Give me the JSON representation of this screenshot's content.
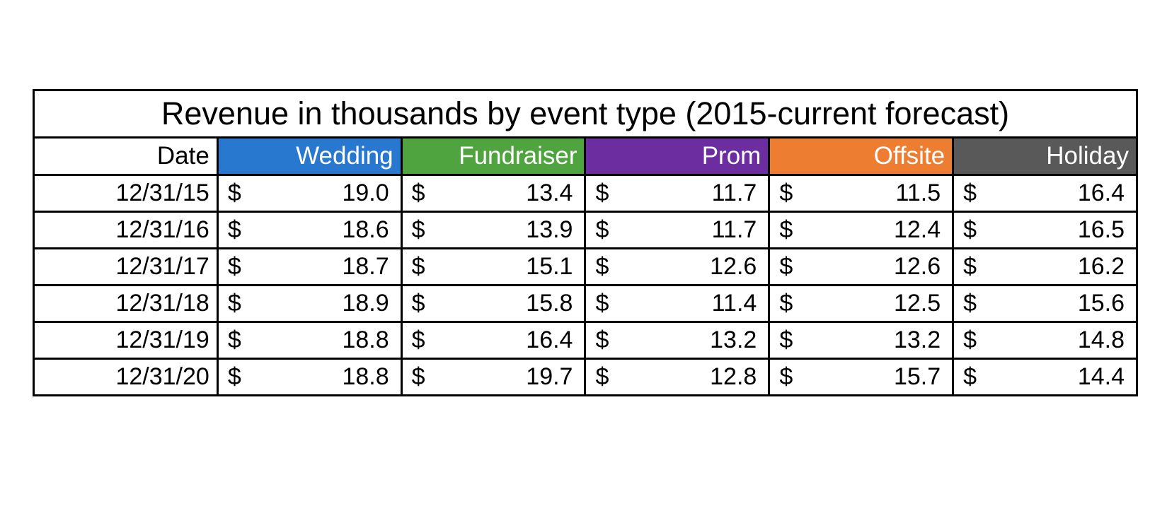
{
  "table": {
    "title": "Revenue in thousands by event type (2015-current forecast)",
    "currency_symbol": "$",
    "columns": [
      {
        "label": "Date",
        "bg": "#FFFFFF",
        "text_color": "#000000"
      },
      {
        "label": "Wedding",
        "bg": "#2878D0",
        "text_color": "#FFFFFF"
      },
      {
        "label": "Fundraiser",
        "bg": "#4FA43F",
        "text_color": "#FFFFFF"
      },
      {
        "label": "Prom",
        "bg": "#6C2DA0",
        "text_color": "#FFFFFF"
      },
      {
        "label": "Offsite",
        "bg": "#ED7D31",
        "text_color": "#FFFFFF"
      },
      {
        "label": "Holiday",
        "bg": "#595959",
        "text_color": "#FFFFFF"
      }
    ],
    "rows": [
      {
        "date": "12/31/15",
        "values": [
          "19.0",
          "13.4",
          "11.7",
          "11.5",
          "16.4"
        ]
      },
      {
        "date": "12/31/16",
        "values": [
          "18.6",
          "13.9",
          "11.7",
          "12.4",
          "16.5"
        ]
      },
      {
        "date": "12/31/17",
        "values": [
          "18.7",
          "15.1",
          "12.6",
          "12.6",
          "16.2"
        ]
      },
      {
        "date": "12/31/18",
        "values": [
          "18.9",
          "15.8",
          "11.4",
          "12.5",
          "15.6"
        ]
      },
      {
        "date": "12/31/19",
        "values": [
          "18.8",
          "16.4",
          "13.2",
          "13.2",
          "14.8"
        ]
      },
      {
        "date": "12/31/20",
        "values": [
          "18.8",
          "19.7",
          "12.8",
          "15.7",
          "14.4"
        ]
      }
    ]
  },
  "chart_data": {
    "type": "table",
    "title": "Revenue in thousands by event type (2015-current forecast)",
    "units": "thousands USD",
    "categories": [
      "12/31/15",
      "12/31/16",
      "12/31/17",
      "12/31/18",
      "12/31/19",
      "12/31/20"
    ],
    "series": [
      {
        "name": "Wedding",
        "color": "#2878D0",
        "values": [
          19.0,
          18.6,
          18.7,
          18.9,
          18.8,
          18.8
        ]
      },
      {
        "name": "Fundraiser",
        "color": "#4FA43F",
        "values": [
          13.4,
          13.9,
          15.1,
          15.8,
          16.4,
          19.7
        ]
      },
      {
        "name": "Prom",
        "color": "#6C2DA0",
        "values": [
          11.7,
          11.7,
          12.6,
          11.4,
          13.2,
          12.8
        ]
      },
      {
        "name": "Offsite",
        "color": "#ED7D31",
        "values": [
          11.5,
          12.4,
          12.6,
          12.5,
          13.2,
          15.7
        ]
      },
      {
        "name": "Holiday",
        "color": "#595959",
        "values": [
          16.4,
          16.5,
          16.2,
          15.6,
          14.8,
          14.4
        ]
      }
    ]
  }
}
